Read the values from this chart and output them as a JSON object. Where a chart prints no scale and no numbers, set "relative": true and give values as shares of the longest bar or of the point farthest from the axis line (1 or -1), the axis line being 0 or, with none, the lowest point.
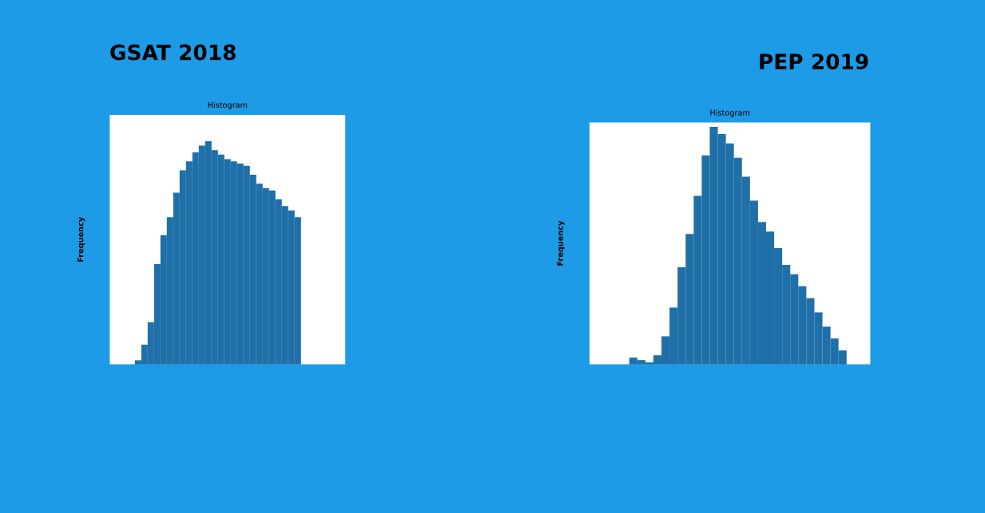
{
  "chart_data": [
    {
      "type": "bar",
      "title": "GSAT 2018",
      "subtitle": "Histogram",
      "ylabel": "Frequency",
      "relative": true,
      "color": "#1f6fa8",
      "categories": [
        null,
        null,
        null,
        null,
        null,
        null,
        null,
        null,
        null,
        null,
        null,
        null,
        null,
        null,
        null,
        null,
        null,
        null,
        null,
        null,
        null,
        null,
        null,
        null,
        null,
        null
      ],
      "values": [
        0.02,
        0.09,
        0.19,
        0.45,
        0.58,
        0.66,
        0.77,
        0.87,
        0.91,
        0.95,
        0.98,
        1,
        0.96,
        0.94,
        0.92,
        0.91,
        0.9,
        0.89,
        0.85,
        0.81,
        0.79,
        0.78,
        0.74,
        0.71,
        0.69,
        0.66
      ]
    },
    {
      "type": "bar",
      "title": "PEP 2019",
      "subtitle": "Histogram",
      "ylabel": "Frequency",
      "relative": true,
      "color": "#1f6fa8",
      "categories": [
        null,
        null,
        null,
        null,
        null,
        null,
        null,
        null,
        null,
        null,
        null,
        null,
        null,
        null,
        null,
        null,
        null,
        null,
        null,
        null,
        null,
        null,
        null,
        null,
        null,
        null,
        null
      ],
      "values": [
        0.03,
        0.02,
        0.01,
        0.04,
        0.12,
        0.24,
        0.41,
        0.55,
        0.71,
        0.88,
        1,
        0.97,
        0.93,
        0.87,
        0.79,
        0.69,
        0.6,
        0.56,
        0.49,
        0.42,
        0.38,
        0.33,
        0.28,
        0.22,
        0.16,
        0.11,
        0.06
      ]
    }
  ]
}
